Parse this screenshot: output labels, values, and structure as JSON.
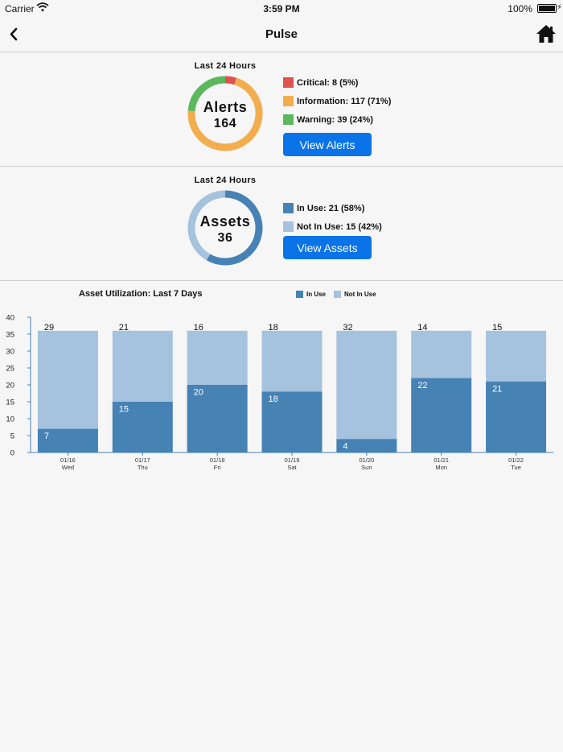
{
  "status_bar": {
    "carrier": "Carrier",
    "time": "3:59 PM",
    "battery": "100%"
  },
  "nav": {
    "title": "Pulse"
  },
  "alerts": {
    "period": "Last 24 Hours",
    "title": "Alerts",
    "total": "164",
    "legend": [
      {
        "label": "Critical: 8 (5%)",
        "value": 8,
        "color": "#e0524f"
      },
      {
        "label": "Information: 117 (71%)",
        "value": 117,
        "color": "#f2ad4e"
      },
      {
        "label": "Warning: 39 (24%)",
        "value": 39,
        "color": "#5cb85c"
      }
    ],
    "button": "View Alerts"
  },
  "assets": {
    "period": "Last 24 Hours",
    "title": "Assets",
    "total": "36",
    "legend": [
      {
        "label": "In Use: 21 (58%)",
        "value": 21,
        "color": "#4682b4"
      },
      {
        "label": "Not In Use: 15 (42%)",
        "value": 15,
        "color": "#a5c2de"
      }
    ],
    "button": "View Assets"
  },
  "chart": {
    "title": "Asset Utilization: Last 7 Days",
    "legend": [
      {
        "name": "In Use",
        "color": "#4682b4"
      },
      {
        "name": "Not In Use",
        "color": "#a5c2de"
      }
    ]
  },
  "chart_data": {
    "type": "bar",
    "stacked": true,
    "title": "Asset Utilization: Last 7 Days",
    "categories": [
      "01/16",
      "01/17",
      "01/18",
      "01/19",
      "01/20",
      "01/21",
      "01/22"
    ],
    "days": [
      "Wed",
      "Thu",
      "Fri",
      "Sat",
      "Sun",
      "Mon",
      "Tue"
    ],
    "series": [
      {
        "name": "In Use",
        "color": "#4682b4",
        "values": [
          7,
          15,
          20,
          18,
          4,
          22,
          21
        ]
      },
      {
        "name": "Not In Use",
        "color": "#a5c2de",
        "values": [
          29,
          21,
          16,
          18,
          32,
          14,
          15
        ]
      }
    ],
    "ylim": [
      0,
      40
    ],
    "yticks": [
      0,
      5,
      10,
      15,
      20,
      25,
      30,
      35,
      40
    ],
    "grid": false,
    "legend_position": "top"
  }
}
